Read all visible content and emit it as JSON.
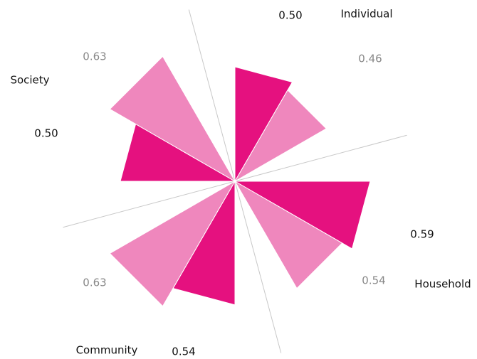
{
  "chart_data": {
    "type": "polar-bar",
    "categories": [
      "Individual",
      "Household",
      "Community",
      "Society"
    ],
    "series": [
      {
        "color": "#e5117f",
        "label_color": "#111111",
        "values": [
          0.5,
          0.59,
          0.54,
          0.5
        ]
      },
      {
        "color": "#ef87bd",
        "label_color": "#888888",
        "values": [
          0.46,
          0.54,
          0.63,
          0.63
        ]
      }
    ]
  }
}
